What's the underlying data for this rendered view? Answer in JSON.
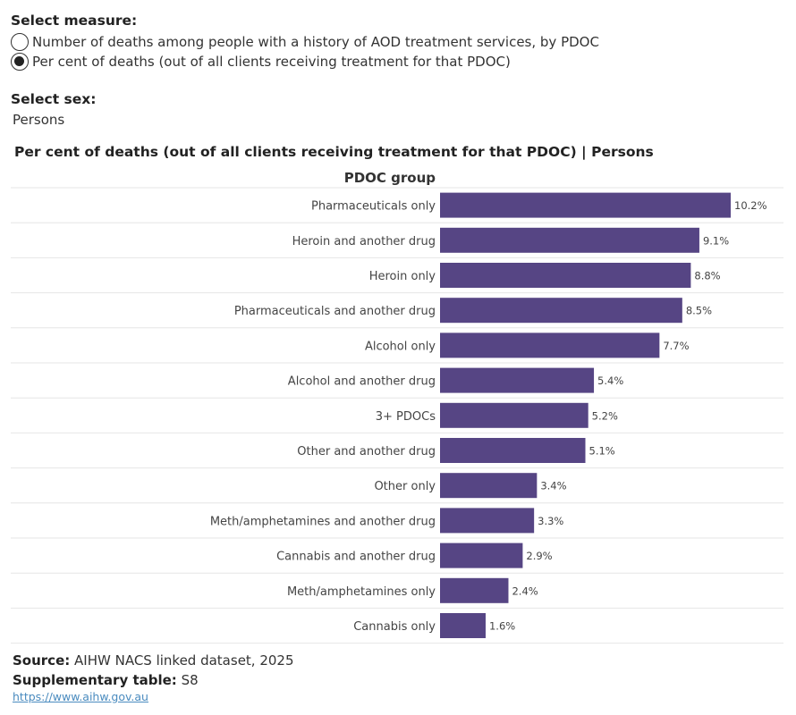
{
  "measure": {
    "label": "Select measure:",
    "options": [
      {
        "text": "Number of deaths among people with a history of AOD treatment services, by PDOC",
        "selected": false
      },
      {
        "text": "Per cent of deaths (out of all clients receiving treatment for that PDOC)",
        "selected": true
      }
    ]
  },
  "sex": {
    "label": "Select sex:",
    "value": "Persons"
  },
  "chart_title": "Per cent of deaths (out of all clients receiving treatment for that PDOC) | Persons",
  "chart_data": {
    "type": "bar",
    "orientation": "horizontal",
    "category_header": "PDOC group",
    "categories": [
      "Pharmaceuticals only",
      "Heroin and another drug",
      "Heroin only",
      "Pharmaceuticals and another drug",
      "Alcohol only",
      "Alcohol and another drug",
      "3+ PDOCs",
      "Other and another drug",
      "Other only",
      "Meth/amphetamines and another drug",
      "Cannabis and another drug",
      "Meth/amphetamines only",
      "Cannabis only"
    ],
    "values": [
      10.2,
      9.1,
      8.8,
      8.5,
      7.7,
      5.4,
      5.2,
      5.1,
      3.4,
      3.3,
      2.9,
      2.4,
      1.6
    ],
    "value_labels": [
      "10.2%",
      "9.1%",
      "8.8%",
      "8.5%",
      "7.7%",
      "5.4%",
      "5.2%",
      "5.1%",
      "3.4%",
      "3.3%",
      "2.9%",
      "2.4%",
      "1.6%"
    ],
    "unit": "%",
    "bar_color": "#564584"
  },
  "footer": {
    "source_label": "Source:",
    "source_text": "AIHW NACS linked dataset, 2025",
    "table_label": "Supplementary table:",
    "table_text": "S8",
    "link": "https://www.aihw.gov.au"
  }
}
